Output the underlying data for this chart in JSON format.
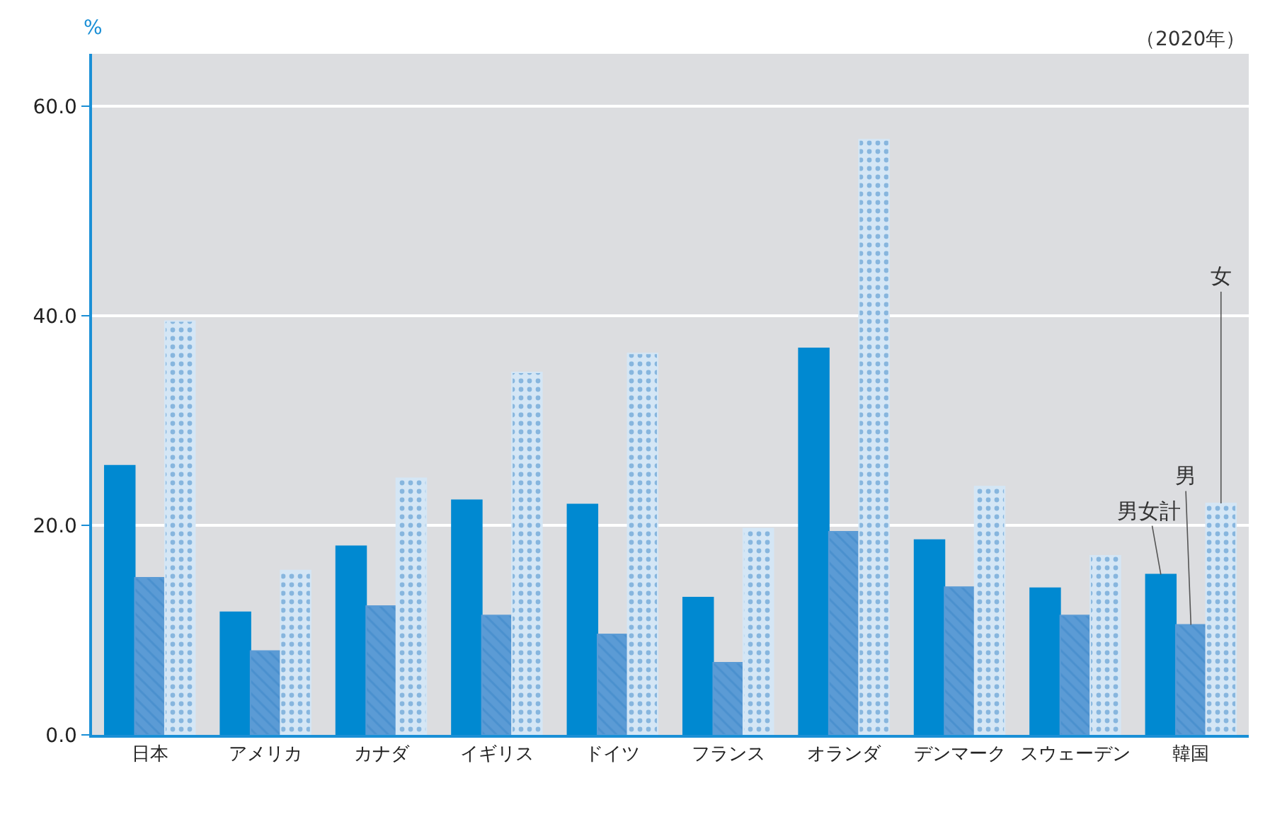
{
  "chart_data": {
    "type": "bar",
    "ylabel": "%",
    "annotations": [
      "（2020年）"
    ],
    "categories": [
      "日本",
      "アメリカ",
      "カナダ",
      "イギリス",
      "ドイツ",
      "フランス",
      "オランダ",
      "デンマーク",
      "スウェーデン",
      "韓国"
    ],
    "series": [
      {
        "name": "男女計",
        "color": "#0089d1",
        "values": [
          25.7,
          11.7,
          18.0,
          22.4,
          22.0,
          13.1,
          36.9,
          18.6,
          14.0,
          15.3
        ]
      },
      {
        "name": "男",
        "color": "#5b9bd5",
        "values": [
          15.0,
          8.0,
          12.3,
          11.4,
          9.6,
          6.9,
          19.4,
          14.1,
          11.4,
          10.5
        ]
      },
      {
        "name": "女",
        "color": "#d4e6f5",
        "values": [
          39.5,
          15.7,
          24.5,
          34.6,
          36.4,
          19.7,
          56.8,
          23.7,
          17.1,
          22.1
        ]
      }
    ],
    "ylim": [
      0,
      65
    ],
    "yticks": [
      {
        "value": 0,
        "label": "0.0"
      },
      {
        "value": 20,
        "label": "20.0"
      },
      {
        "value": 40,
        "label": "40.0"
      },
      {
        "value": 60,
        "label": "60.0"
      }
    ],
    "grid": "y",
    "legend": false
  }
}
